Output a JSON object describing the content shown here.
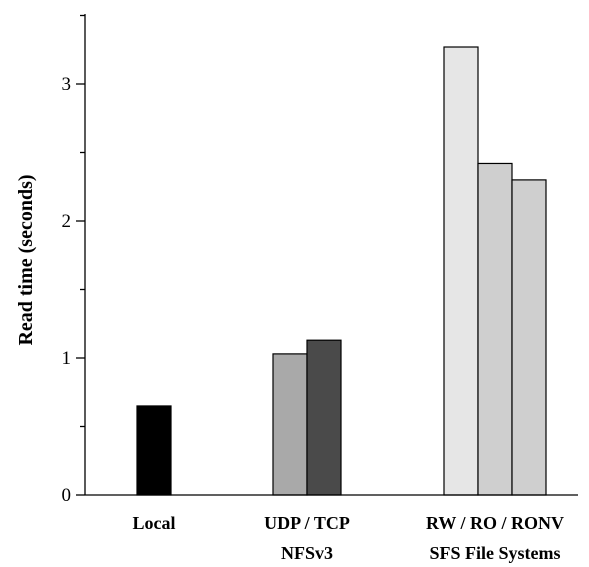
{
  "chart_data": {
    "type": "bar",
    "ylabel": "Read time (seconds)",
    "xlabel": "",
    "ylim": [
      0,
      3.5
    ],
    "yticks": [
      0,
      1,
      2,
      3
    ],
    "grid": false,
    "groups": [
      {
        "label": "Local",
        "sublabel": "",
        "bars": [
          {
            "value": 0.65,
            "color": "#000000"
          }
        ]
      },
      {
        "label": "UDP / TCP",
        "sublabel": "NFSv3",
        "bars": [
          {
            "value": 1.03,
            "color": "#a9a9a9"
          },
          {
            "value": 1.13,
            "color": "#4a4a4a"
          }
        ]
      },
      {
        "label": "RW / RO / RONV",
        "sublabel": "SFS File Systems",
        "bars": [
          {
            "value": 3.27,
            "color": "#e6e6e6"
          },
          {
            "value": 2.42,
            "color": "#cfcfcf"
          },
          {
            "value": 2.3,
            "color": "#cfcfcf"
          }
        ]
      }
    ]
  }
}
